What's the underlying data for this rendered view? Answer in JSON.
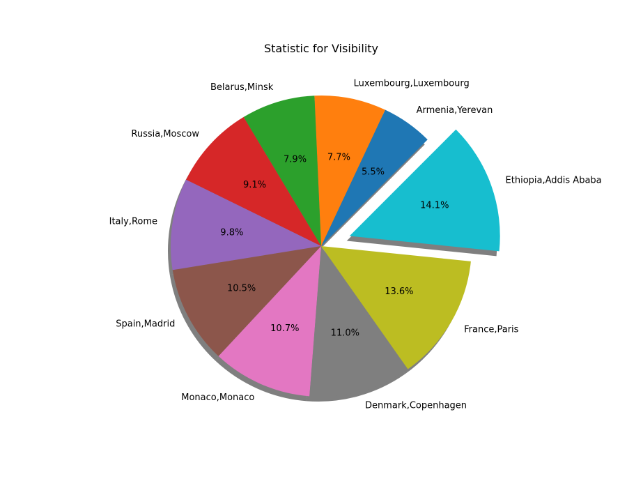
{
  "chart_data": {
    "type": "pie",
    "title": "Statistic for Visibility",
    "shadow": true,
    "start_angle_deg": 45,
    "counterclockwise": true,
    "slices": [
      {
        "label": "Armenia,Yerevan",
        "value": 5.5,
        "pct_label": "5.5%",
        "color": "#1f77b4",
        "exploded": false
      },
      {
        "label": "Luxembourg,Luxembourg",
        "value": 7.7,
        "pct_label": "7.7%",
        "color": "#ff7f0e",
        "exploded": false
      },
      {
        "label": "Belarus,Minsk",
        "value": 7.9,
        "pct_label": "7.9%",
        "color": "#2ca02c",
        "exploded": false
      },
      {
        "label": "Russia,Moscow",
        "value": 9.1,
        "pct_label": "9.1%",
        "color": "#d62728",
        "exploded": false
      },
      {
        "label": "Italy,Rome",
        "value": 9.8,
        "pct_label": "9.8%",
        "color": "#9467bd",
        "exploded": false
      },
      {
        "label": "Spain,Madrid",
        "value": 10.5,
        "pct_label": "10.5%",
        "color": "#8c564b",
        "exploded": false
      },
      {
        "label": "Monaco,Monaco",
        "value": 10.7,
        "pct_label": "10.7%",
        "color": "#e377c2",
        "exploded": false
      },
      {
        "label": "Denmark,Copenhagen",
        "value": 11.0,
        "pct_label": "11.0%",
        "color": "#7f7f7f",
        "exploded": false
      },
      {
        "label": "France,Paris",
        "value": 13.6,
        "pct_label": "13.6%",
        "color": "#bcbd22",
        "exploded": false
      },
      {
        "label": "Ethiopia,Addis Ababa",
        "value": 14.1,
        "pct_label": "14.1%",
        "color": "#17becf",
        "exploded": true
      }
    ]
  }
}
